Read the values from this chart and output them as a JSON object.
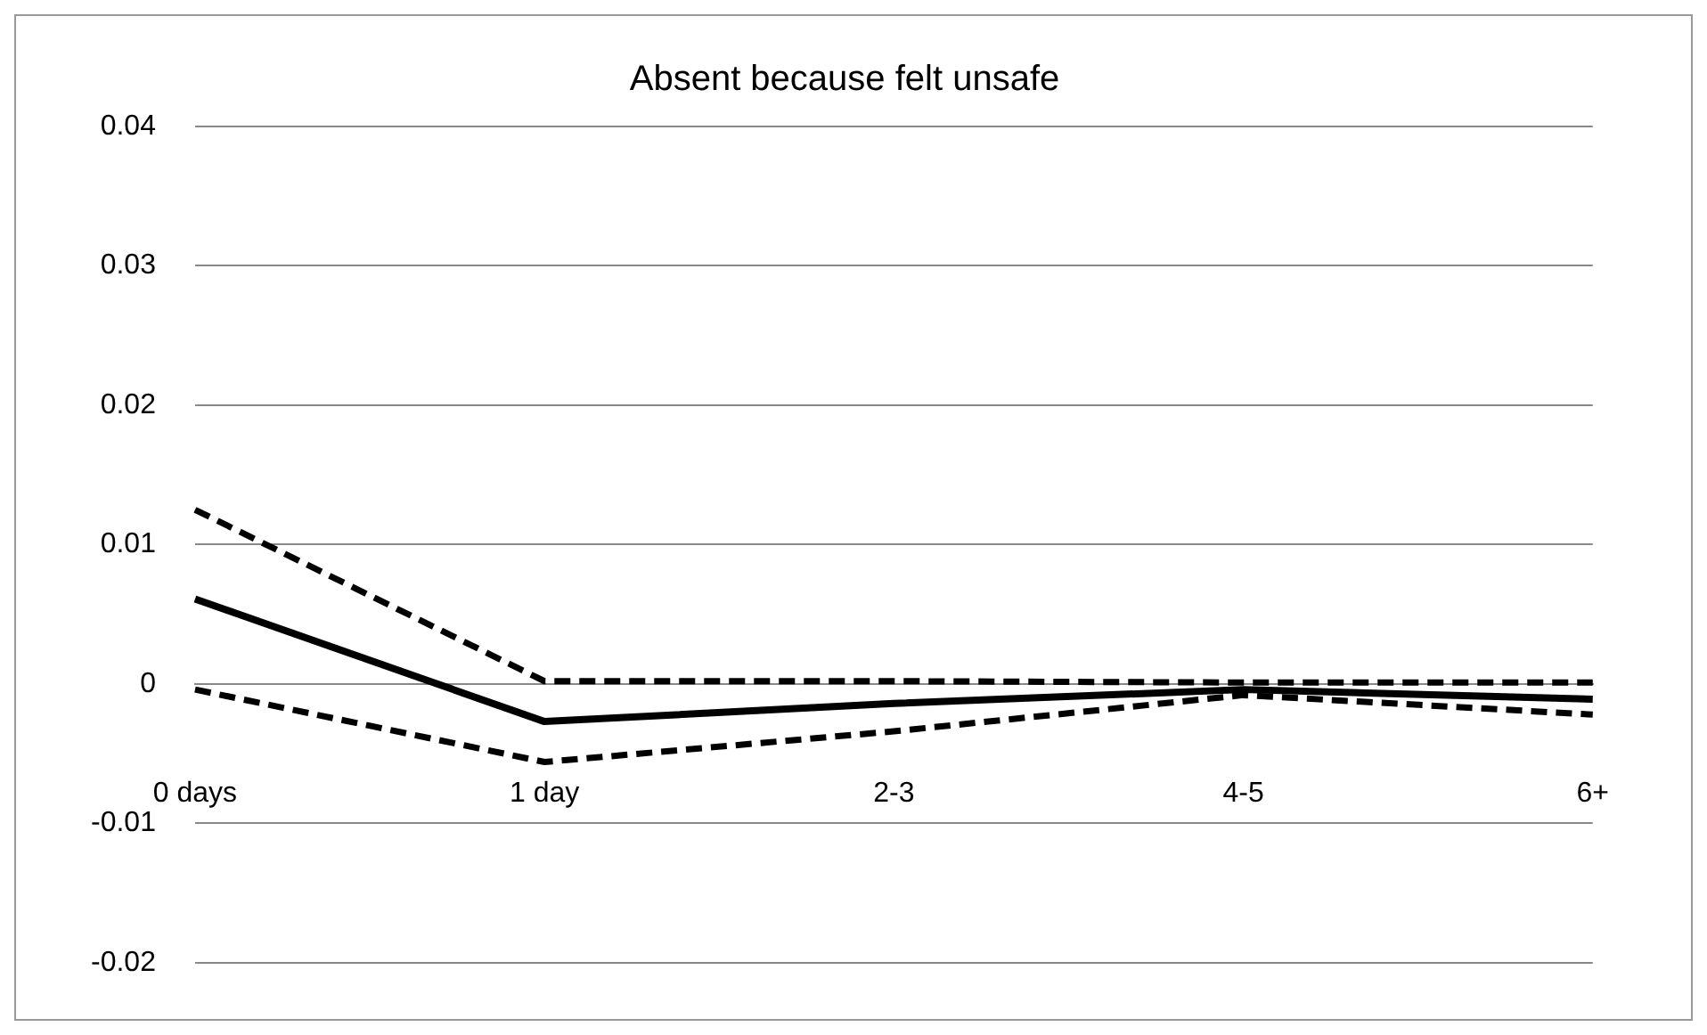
{
  "chart_data": {
    "type": "line",
    "title": "Absent because felt unsafe",
    "categories": [
      "0 days",
      "1 day",
      "2-3",
      "4-5",
      "6+"
    ],
    "series": [
      {
        "color": "#000000",
        "line_style": "dashed",
        "values": [
          0.0125,
          0.0002,
          0.0002,
          0.0001,
          0.0001
        ]
      },
      {
        "color": "#000000",
        "line_style": "solid",
        "values": [
          0.0061,
          -0.0027,
          -0.0014,
          -0.0004,
          -0.0011
        ]
      },
      {
        "color": "#000000",
        "line_style": "dashed",
        "values": [
          -0.0004,
          -0.0056,
          -0.0034,
          -0.0008,
          -0.0022
        ]
      }
    ],
    "ylim": [
      -0.02,
      0.04
    ],
    "yticks": [
      -0.02,
      -0.01,
      0,
      0.01,
      0.02,
      0.03,
      0.04
    ],
    "grid": "y",
    "legend": false,
    "marker": "none"
  }
}
